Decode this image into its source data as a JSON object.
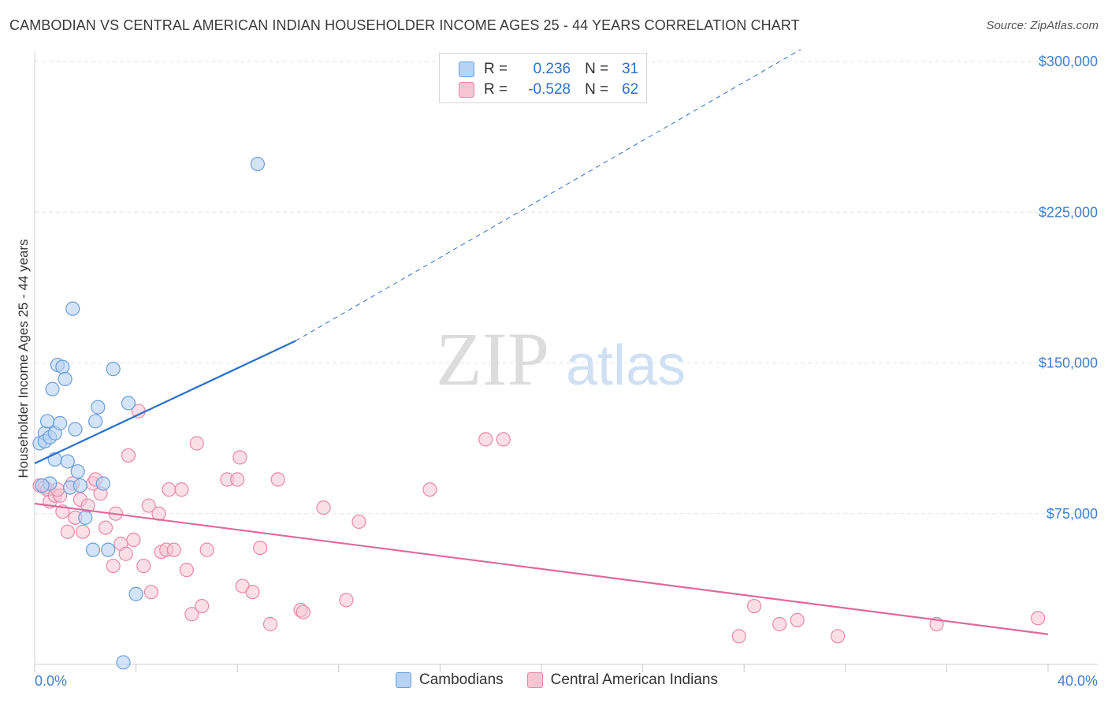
{
  "title": "CAMBODIAN VS CENTRAL AMERICAN INDIAN HOUSEHOLDER INCOME AGES 25 - 44 YEARS CORRELATION CHART",
  "source": "Source: ZipAtlas.com",
  "watermark": {
    "zip": "ZIP",
    "atlas": "atlas"
  },
  "legend": {
    "rows": [
      {
        "r_label": "R =",
        "r_value": "0.236",
        "n_label": "N =",
        "n_value": "31"
      },
      {
        "r_label": "R =",
        "r_value": "-0.528",
        "n_label": "N =",
        "n_value": "62"
      }
    ]
  },
  "bottom_legend": {
    "series1": "Cambodians",
    "series2": "Central American Indians"
  },
  "colors": {
    "blue_fill": "#b8d2f3",
    "blue_stroke": "#6a9fdc",
    "blue_line": "#2a6fcc",
    "pink_fill": "#f7c4d4",
    "pink_stroke": "#e888a8",
    "pink_line": "#e0699a",
    "tick_text": "#3f7fcf",
    "grid": "#e3e3e3"
  },
  "chart_data": {
    "type": "scatter",
    "title": "CAMBODIAN VS CENTRAL AMERICAN INDIAN HOUSEHOLDER INCOME AGES 25 - 44 YEARS CORRELATION CHART",
    "xlabel": "",
    "ylabel": "Householder Income Ages 25 - 44 years",
    "xlim": [
      0,
      40
    ],
    "ylim": [
      0,
      300000
    ],
    "x_tick_labels": [
      "0.0%",
      "40.0%"
    ],
    "y_ticks": [
      75000,
      150000,
      225000,
      300000
    ],
    "y_tick_labels": [
      "$75,000",
      "$150,000",
      "$225,000",
      "$300,000"
    ],
    "grid": true,
    "series": [
      {
        "name": "Cambodians",
        "R": 0.236,
        "N": 31,
        "trend": {
          "x0": 0,
          "y0": 100000,
          "x1": 10.3,
          "y1": 161000,
          "dash_to_x": 40,
          "dash_to_y": 377000
        },
        "points": [
          [
            0.2,
            110000
          ],
          [
            0.4,
            115000
          ],
          [
            0.4,
            111000
          ],
          [
            0.5,
            121000
          ],
          [
            0.6,
            113000
          ],
          [
            0.6,
            90000
          ],
          [
            0.7,
            137000
          ],
          [
            0.8,
            102000
          ],
          [
            0.8,
            115000
          ],
          [
            0.9,
            149000
          ],
          [
            1.0,
            120000
          ],
          [
            1.1,
            148000
          ],
          [
            1.2,
            142000
          ],
          [
            1.3,
            101000
          ],
          [
            1.4,
            88000
          ],
          [
            1.6,
            117000
          ],
          [
            1.7,
            96000
          ],
          [
            1.8,
            89000
          ],
          [
            2.0,
            73000
          ],
          [
            1.5,
            177000
          ],
          [
            2.3,
            57000
          ],
          [
            2.4,
            121000
          ],
          [
            2.5,
            128000
          ],
          [
            2.7,
            90000
          ],
          [
            2.9,
            57000
          ],
          [
            3.1,
            147000
          ],
          [
            3.7,
            130000
          ],
          [
            4.0,
            35000
          ],
          [
            3.5,
            1000
          ],
          [
            8.8,
            249000
          ],
          [
            0.3,
            89000
          ]
        ]
      },
      {
        "name": "Central American Indians",
        "R": -0.528,
        "N": 62,
        "trend": {
          "x0": 0,
          "y0": 80000,
          "x1": 40,
          "y1": 15000
        },
        "points": [
          [
            0.2,
            89000
          ],
          [
            0.4,
            88000
          ],
          [
            0.5,
            87000
          ],
          [
            0.6,
            81000
          ],
          [
            0.8,
            84000
          ],
          [
            1.1,
            76000
          ],
          [
            1.3,
            66000
          ],
          [
            1.5,
            90000
          ],
          [
            1.6,
            73000
          ],
          [
            1.8,
            82000
          ],
          [
            1.9,
            66000
          ],
          [
            2.1,
            79000
          ],
          [
            2.3,
            90000
          ],
          [
            2.4,
            92000
          ],
          [
            2.6,
            85000
          ],
          [
            2.8,
            68000
          ],
          [
            3.1,
            49000
          ],
          [
            3.2,
            75000
          ],
          [
            3.4,
            60000
          ],
          [
            3.6,
            55000
          ],
          [
            3.7,
            104000
          ],
          [
            3.9,
            62000
          ],
          [
            4.1,
            126000
          ],
          [
            4.3,
            49000
          ],
          [
            4.5,
            79000
          ],
          [
            4.6,
            36000
          ],
          [
            4.9,
            75000
          ],
          [
            5.0,
            56000
          ],
          [
            5.2,
            57000
          ],
          [
            5.3,
            87000
          ],
          [
            5.5,
            57000
          ],
          [
            5.8,
            87000
          ],
          [
            6.0,
            47000
          ],
          [
            6.2,
            25000
          ],
          [
            6.4,
            110000
          ],
          [
            6.6,
            29000
          ],
          [
            6.8,
            57000
          ],
          [
            7.6,
            92000
          ],
          [
            8.0,
            92000
          ],
          [
            8.1,
            103000
          ],
          [
            8.2,
            39000
          ],
          [
            8.6,
            36000
          ],
          [
            8.9,
            58000
          ],
          [
            9.3,
            20000
          ],
          [
            9.6,
            92000
          ],
          [
            10.5,
            27000
          ],
          [
            10.6,
            26000
          ],
          [
            11.4,
            78000
          ],
          [
            12.3,
            32000
          ],
          [
            12.8,
            71000
          ],
          [
            15.6,
            87000
          ],
          [
            17.8,
            112000
          ],
          [
            18.5,
            112000
          ],
          [
            27.8,
            14000
          ],
          [
            28.4,
            29000
          ],
          [
            29.4,
            20000
          ],
          [
            30.1,
            22000
          ],
          [
            31.7,
            14000
          ],
          [
            35.6,
            20000
          ],
          [
            39.6,
            23000
          ],
          [
            1.0,
            84000
          ],
          [
            0.9,
            87000
          ]
        ]
      }
    ]
  }
}
